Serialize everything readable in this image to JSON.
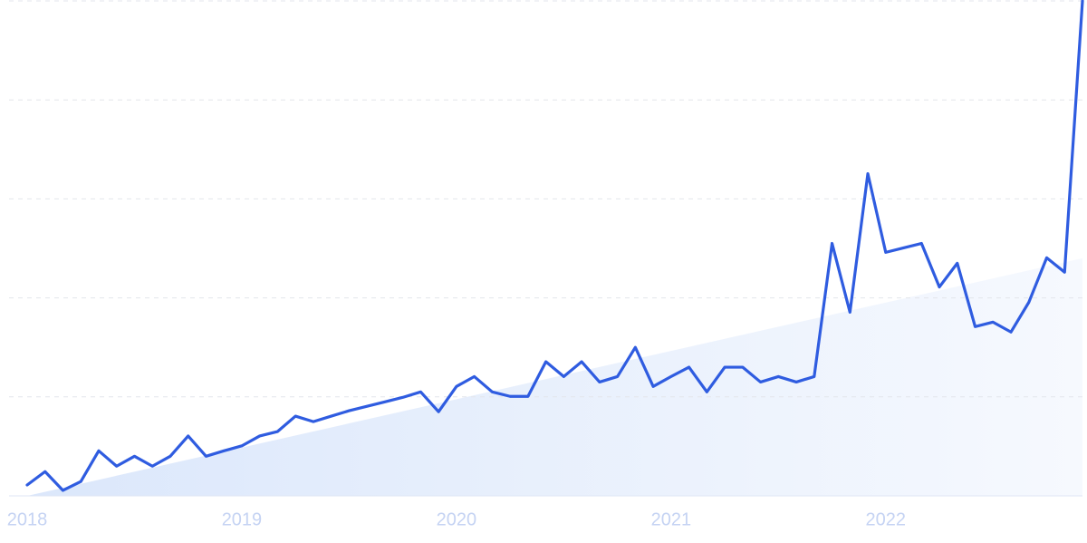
{
  "chart_data": {
    "type": "line",
    "categories": [
      "2018",
      null,
      null,
      null,
      null,
      null,
      null,
      null,
      null,
      null,
      null,
      null,
      "2019",
      null,
      null,
      null,
      null,
      null,
      null,
      null,
      null,
      null,
      null,
      null,
      "2020",
      null,
      null,
      null,
      null,
      null,
      null,
      null,
      null,
      null,
      null,
      null,
      "2021",
      null,
      null,
      null,
      null,
      null,
      null,
      null,
      null,
      null,
      null,
      null,
      "2022",
      null,
      null,
      null,
      null,
      null,
      null,
      null,
      null,
      null,
      null,
      null
    ],
    "series": [
      {
        "color": "#2f5ce0",
        "values": [
          2.2,
          4.9,
          1.1,
          2.9,
          9.1,
          6.0,
          8.0,
          6.0,
          8.0,
          12.1,
          8.0,
          9.1,
          10.1,
          12.1,
          13.0,
          16.1,
          15.0,
          16.1,
          17.2,
          18.1,
          19.0,
          19.9,
          21.0,
          17.0,
          22.1,
          24.1,
          21.0,
          20.1,
          20.1,
          27.1,
          24.1,
          27.1,
          23.0,
          24.1,
          30.0,
          22.1,
          24.1,
          26.0,
          21.0,
          26.0,
          26.0,
          23.0,
          24.1,
          23.0,
          24.1,
          51.0,
          37.1,
          65.1,
          49.2,
          50.1,
          51.0,
          42.2,
          47.0,
          34.2,
          35.1,
          33.1,
          39.1,
          48.1,
          45.2,
          100
        ]
      }
    ],
    "trend": {
      "color": "#dbe7fb",
      "values": [
        0,
        48
      ]
    },
    "ylim": [
      0,
      100
    ],
    "yticks": [
      0,
      20,
      40,
      60,
      80,
      100
    ],
    "grid": true
  }
}
